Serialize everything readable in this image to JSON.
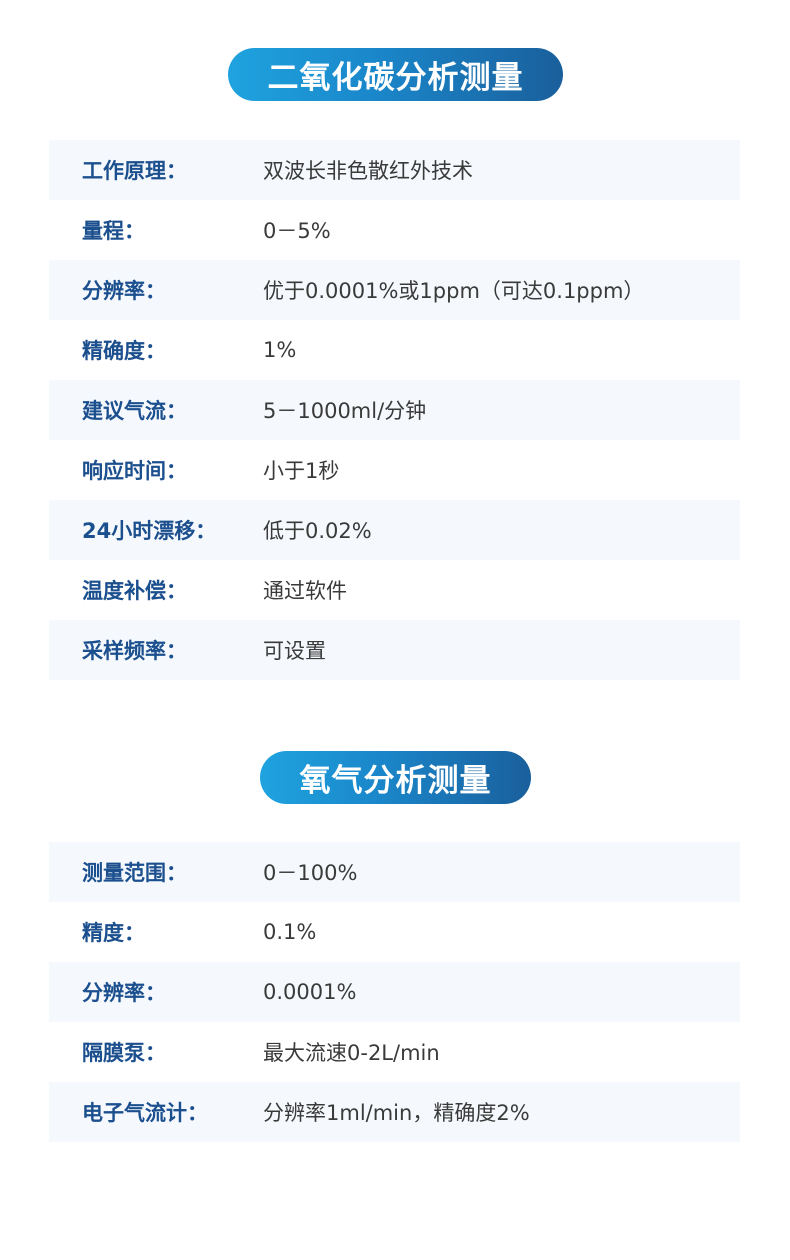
{
  "sections": [
    {
      "title": "二氧化碳分析测量",
      "rows": [
        {
          "label": "工作原理：",
          "value": "双波长非色散红外技术"
        },
        {
          "label": "量程：",
          "value": "0－5%"
        },
        {
          "label": "分辨率：",
          "value": "优于0.0001%或1ppm（可达0.1ppm）"
        },
        {
          "label": "精确度：",
          "value": "1%"
        },
        {
          "label": "建议气流：",
          "value": "5－1000ml/分钟"
        },
        {
          "label": "响应时间：",
          "value": "小于1秒"
        },
        {
          "label": "24小时漂移：",
          "value": "低于0.02%"
        },
        {
          "label": "温度补偿：",
          "value": "通过软件"
        },
        {
          "label": "采样频率：",
          "value": "可设置"
        }
      ]
    },
    {
      "title": "氧气分析测量",
      "rows": [
        {
          "label": "测量范围：",
          "value": "0－100%"
        },
        {
          "label": "精度：",
          "value": "0.1%"
        },
        {
          "label": "分辨率：",
          "value": "0.0001%"
        },
        {
          "label": "隔膜泵：",
          "value": "最大流速0-2L/min"
        },
        {
          "label": "电子气流计：",
          "value": "分辨率1ml/min，精确度2%"
        }
      ]
    }
  ]
}
